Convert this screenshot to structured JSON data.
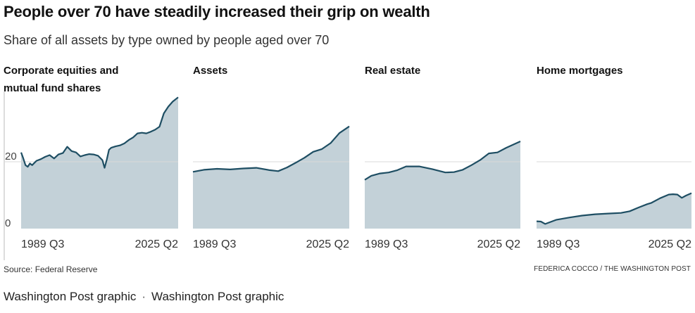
{
  "title": "People over 70 have steadily increased their grip on wealth",
  "subtitle": "Share of all assets by type owned by people aged over 70",
  "source": "Source: Federal Reserve",
  "credit": "FEDERICA COCCO / THE WASHINGTON POST",
  "caption": {
    "left": "Washington Post graphic",
    "separator": "·",
    "right": "Washington Post graphic"
  },
  "colors": {
    "area_fill": "#c3d1d8",
    "line": "#1e4e63",
    "gridline": "#d9d9d9"
  },
  "chart_data": [
    {
      "type": "area",
      "title": "Corporate equities and mutual fund shares",
      "title_lines": [
        "Corporate equities and",
        "mutual fund shares"
      ],
      "x_tick_labels": [
        "1989 Q3",
        "2025 Q2"
      ],
      "y_tick_labels": [
        "20",
        "0"
      ],
      "y_ticks": [
        20,
        0
      ],
      "ylim": [
        0,
        40
      ],
      "xlim": [
        1989.5,
        2025.25
      ],
      "x": [
        1989.5,
        1990.0,
        1990.5,
        1991.0,
        1991.5,
        1992.0,
        1993.0,
        1994.0,
        1995.0,
        1996.0,
        1997.0,
        1998.0,
        1999.0,
        2000.0,
        2001.0,
        2002.0,
        2003.0,
        2004.0,
        2005.0,
        2006.0,
        2007.0,
        2008.0,
        2008.5,
        2009.0,
        2009.5,
        2010.0,
        2011.0,
        2012.0,
        2013.0,
        2014.0,
        2015.0,
        2016.0,
        2017.0,
        2018.0,
        2019.0,
        2020.0,
        2021.0,
        2022.0,
        2023.0,
        2024.0,
        2025.25
      ],
      "values": [
        22.8,
        21.0,
        19.0,
        18.5,
        19.5,
        19.0,
        20.3,
        20.8,
        21.5,
        22.0,
        21.0,
        22.2,
        22.6,
        24.5,
        23.2,
        22.8,
        21.6,
        22.0,
        22.3,
        22.2,
        21.8,
        20.5,
        18.2,
        20.6,
        23.6,
        24.2,
        24.6,
        24.9,
        25.5,
        26.5,
        27.3,
        28.5,
        28.7,
        28.5,
        29.0,
        29.6,
        30.5,
        34.5,
        36.5,
        38.0,
        39.3
      ]
    },
    {
      "type": "area",
      "title": "Assets",
      "title_lines": [
        "Assets"
      ],
      "x_tick_labels": [
        "1989 Q3",
        "2025 Q2"
      ],
      "y_ticks": [
        20,
        0
      ],
      "ylim": [
        0,
        40
      ],
      "xlim": [
        1989.5,
        2025.25
      ],
      "x": [
        1989.5,
        1992.0,
        1995.0,
        1998.0,
        2001.0,
        2004.0,
        2007.0,
        2009.0,
        2011.0,
        2013.0,
        2015.0,
        2017.0,
        2019.0,
        2021.0,
        2023.0,
        2025.25
      ],
      "values": [
        17.0,
        17.6,
        17.9,
        17.7,
        18.0,
        18.2,
        17.5,
        17.2,
        18.3,
        19.7,
        21.2,
        23.0,
        23.8,
        25.6,
        28.6,
        30.6
      ]
    },
    {
      "type": "area",
      "title": "Real estate",
      "title_lines": [
        "Real estate"
      ],
      "x_tick_labels": [
        "1989 Q3",
        "2025 Q2"
      ],
      "y_ticks": [
        20,
        0
      ],
      "ylim": [
        0,
        40
      ],
      "xlim": [
        1989.5,
        2025.25
      ],
      "x": [
        1989.5,
        1991.0,
        1993.0,
        1995.0,
        1997.0,
        1999.0,
        2002.0,
        2005.0,
        2008.0,
        2010.0,
        2012.0,
        2014.0,
        2016.0,
        2018.0,
        2020.0,
        2022.0,
        2025.25
      ],
      "values": [
        14.6,
        15.8,
        16.5,
        16.8,
        17.5,
        18.6,
        18.6,
        17.8,
        16.8,
        16.9,
        17.6,
        19.0,
        20.5,
        22.5,
        22.8,
        24.2,
        26.1
      ]
    },
    {
      "type": "area",
      "title": "Home mortgages",
      "title_lines": [
        "Home mortgages"
      ],
      "x_tick_labels": [
        "1989 Q3",
        "2025 Q2"
      ],
      "y_ticks": [
        20,
        0
      ],
      "ylim": [
        0,
        40
      ],
      "xlim": [
        1989.5,
        2025.25
      ],
      "x": [
        1989.5,
        1990.5,
        1991.5,
        1994.0,
        1997.0,
        2000.0,
        2003.0,
        2006.0,
        2009.0,
        2011.0,
        2013.0,
        2015.0,
        2016.0,
        2018.0,
        2020.0,
        2021.0,
        2022.0,
        2023.0,
        2024.0,
        2025.25
      ],
      "values": [
        2.2,
        2.1,
        1.4,
        2.6,
        3.3,
        3.9,
        4.3,
        4.5,
        4.7,
        5.2,
        6.3,
        7.3,
        7.7,
        9.1,
        10.2,
        10.3,
        10.2,
        9.2,
        9.9,
        10.6
      ]
    }
  ]
}
